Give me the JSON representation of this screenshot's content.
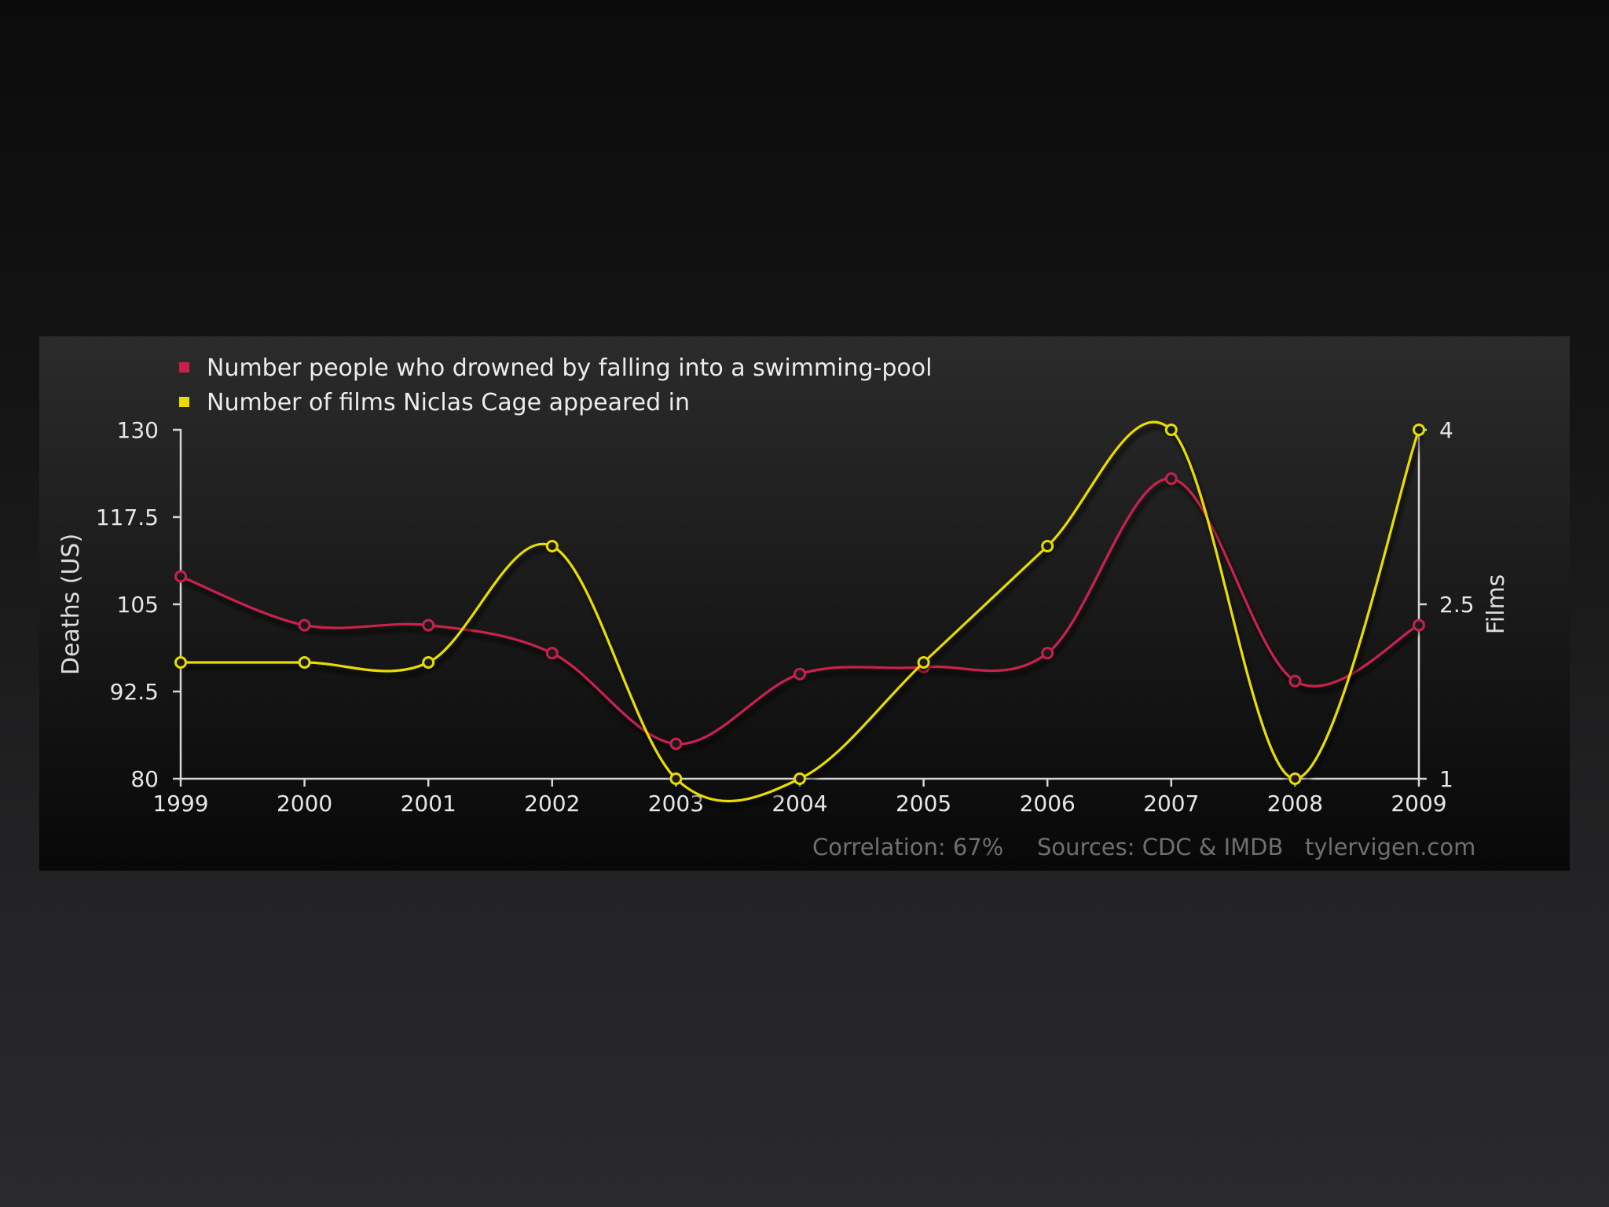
{
  "chart_data": {
    "type": "line",
    "legend": [
      {
        "label": "Number people who drowned by falling into a swimming-pool",
        "color": "#c8204e"
      },
      {
        "label": "Number of films Niclas Cage appeared in",
        "color": "#e8dc00"
      }
    ],
    "x": [
      "1999",
      "2000",
      "2001",
      "2002",
      "2003",
      "2004",
      "2005",
      "2006",
      "2007",
      "2008",
      "2009"
    ],
    "series": [
      {
        "name": "Number people who drowned by falling into a swimming-pool",
        "axis": "left",
        "color": "#c8204e",
        "values": [
          109,
          102,
          102,
          98,
          85,
          95,
          96,
          98,
          123,
          94,
          102
        ]
      },
      {
        "name": "Number of films Niclas Cage appeared in",
        "axis": "right",
        "color": "#e8dc00",
        "values": [
          2,
          2,
          2,
          3,
          1,
          1,
          2,
          3,
          4,
          1,
          4
        ]
      }
    ],
    "ylabel": "Deaths (US)",
    "y2label": "Films",
    "ylim": [
      80,
      130
    ],
    "y2lim": [
      1,
      4
    ],
    "yticks": [
      "130",
      "117.5",
      "105",
      "92.5",
      "80"
    ],
    "y2ticks": [
      "4",
      "2.5",
      "1"
    ],
    "legend_position": "top-left",
    "grid": false,
    "footer": {
      "correlation": "Correlation: 67%",
      "sources": "Sources: CDC & IMDB",
      "site": "tylervigen.com"
    }
  }
}
